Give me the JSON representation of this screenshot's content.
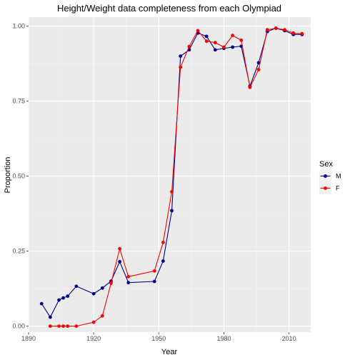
{
  "chart_data": {
    "type": "line",
    "title": "Height/Weight data completeness from each Olympiad",
    "xlabel": "Year",
    "ylabel": "Proportion",
    "xlim": [
      1890,
      2020
    ],
    "ylim": [
      -0.02,
      1.03
    ],
    "x_ticks": [
      1890,
      1920,
      1950,
      1980,
      2010
    ],
    "y_ticks": [
      0.0,
      0.25,
      0.5,
      0.75,
      1.0
    ],
    "x_tick_labels": [
      "1890",
      "1920",
      "1950",
      "1980",
      "2010"
    ],
    "y_tick_labels": [
      "0.00",
      "0.25",
      "0.50",
      "0.75",
      "1.00"
    ],
    "grid": true,
    "legend": {
      "title": "Sex",
      "position": "right"
    },
    "series": [
      {
        "name": "M",
        "color": "#00008B",
        "x": [
          1896,
          1900,
          1904,
          1906,
          1908,
          1912,
          1920,
          1924,
          1928,
          1932,
          1936,
          1948,
          1952,
          1956,
          1960,
          1964,
          1968,
          1972,
          1976,
          1980,
          1984,
          1988,
          1992,
          1996,
          2000,
          2004,
          2008,
          2012,
          2016
        ],
        "y": [
          0.075,
          0.03,
          0.087,
          0.094,
          0.1,
          0.133,
          0.108,
          0.127,
          0.15,
          0.215,
          0.145,
          0.149,
          0.217,
          0.385,
          0.9,
          0.921,
          0.977,
          0.966,
          0.921,
          0.926,
          0.93,
          0.933,
          0.8,
          0.878,
          0.982,
          0.993,
          0.985,
          0.972,
          0.972
        ]
      },
      {
        "name": "F",
        "color": "#FF0000",
        "x": [
          1900,
          1904,
          1906,
          1908,
          1912,
          1920,
          1924,
          1928,
          1932,
          1936,
          1948,
          1952,
          1956,
          1960,
          1964,
          1968,
          1972,
          1976,
          1980,
          1984,
          1988,
          1992,
          1996,
          2000,
          2004,
          2008,
          2012,
          2016
        ],
        "y": [
          0.0,
          0.0,
          0.0,
          0.0,
          0.0,
          0.013,
          0.034,
          0.143,
          0.258,
          0.165,
          0.184,
          0.279,
          0.448,
          0.863,
          0.932,
          0.985,
          0.95,
          0.945,
          0.93,
          0.969,
          0.953,
          0.796,
          0.855,
          0.988,
          0.993,
          0.988,
          0.977,
          0.975
        ]
      }
    ]
  }
}
